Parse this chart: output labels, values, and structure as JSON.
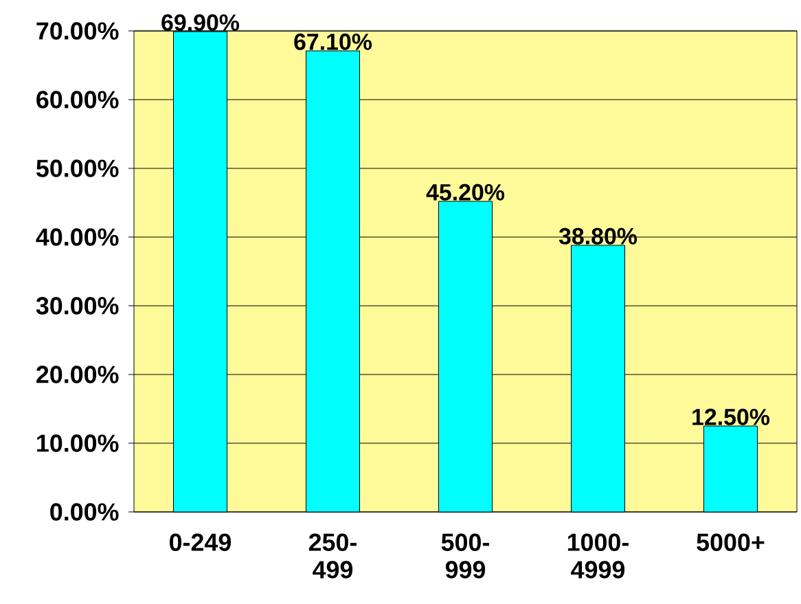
{
  "chart_data": {
    "type": "bar",
    "categories": [
      "0-249",
      "250-499",
      "500-999",
      "1000-4999",
      "5000+"
    ],
    "values": [
      69.9,
      67.1,
      45.2,
      38.8,
      12.5
    ],
    "value_labels": [
      "69.90%",
      "67.10%",
      "45.20%",
      "38.80%",
      "12.50%"
    ],
    "color": "#00ffff",
    "ylim": [
      0,
      70
    ],
    "yticks": [
      {
        "value": 0,
        "label": "0.00%"
      },
      {
        "value": 10,
        "label": "10.00%"
      },
      {
        "value": 20,
        "label": "20.00%"
      },
      {
        "value": 30,
        "label": "30.00%"
      },
      {
        "value": 40,
        "label": "40.00%"
      },
      {
        "value": 50,
        "label": "50.00%"
      },
      {
        "value": 60,
        "label": "60.00%"
      },
      {
        "value": 70,
        "label": "70.00%"
      }
    ],
    "grid": "y"
  }
}
